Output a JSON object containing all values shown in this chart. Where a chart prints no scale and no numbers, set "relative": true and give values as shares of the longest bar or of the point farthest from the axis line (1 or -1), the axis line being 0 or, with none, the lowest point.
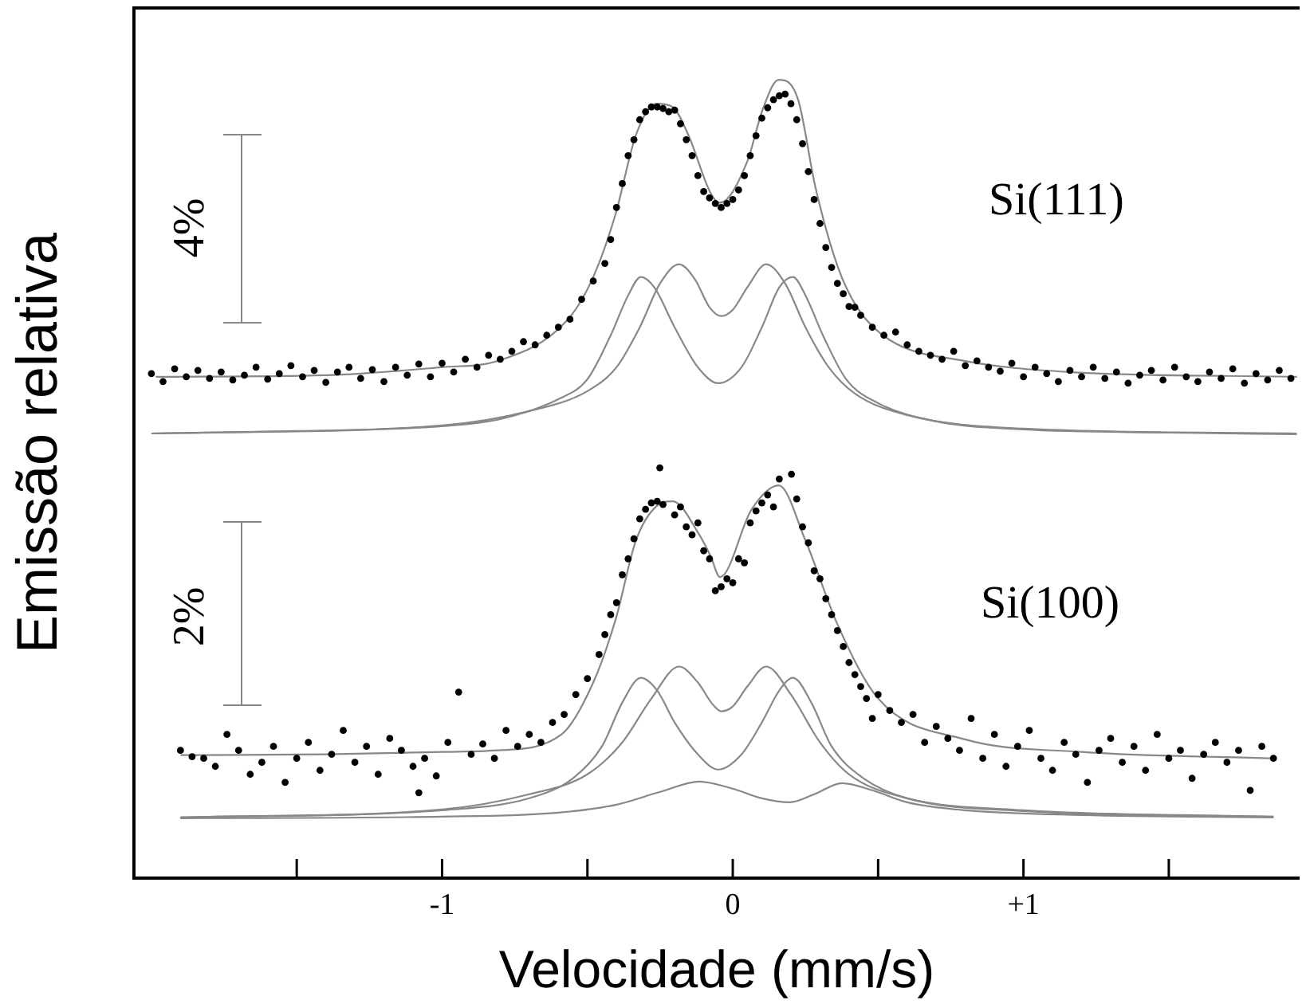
{
  "chart_data": {
    "type": "scatter",
    "xlabel": "Velocidade (mm/s)",
    "ylabel": "Emissão relativa",
    "relative": true,
    "tick_labels": "x",
    "xlim": [
      -2.06,
      1.95
    ],
    "xticks": [
      {
        "value": -1.5,
        "label": null
      },
      -1,
      {
        "value": -0.5,
        "label": null
      },
      0,
      {
        "value": 0.5,
        "label": null
      },
      {
        "value": 1,
        "label": "+1"
      },
      {
        "value": 1.5,
        "label": null
      }
    ],
    "annotations": [
      "4%",
      "2%",
      "Si(111)",
      "Si(100)"
    ],
    "series": [
      {
        "type": "line",
        "color": "#888888",
        "x": [
          -2.0,
          -1.5,
          -1.0,
          -0.8,
          -0.6,
          -0.5,
          -0.42,
          -0.36,
          -0.316,
          -0.27,
          -0.2,
          -0.12,
          -0.05,
          0.03,
          0.1,
          0.16,
          0.207,
          0.25,
          0.31,
          0.39,
          0.5,
          0.7,
          1.0,
          1.5,
          1.94
        ],
        "values": [
          0.557,
          0.56,
          0.566,
          0.575,
          0.6,
          0.625,
          0.68,
          0.73,
          0.753,
          0.74,
          0.69,
          0.64,
          0.62,
          0.64,
          0.69,
          0.74,
          0.753,
          0.73,
          0.68,
          0.625,
          0.595,
          0.572,
          0.562,
          0.558,
          0.556
        ]
      },
      {
        "type": "line",
        "color": "#888888",
        "x": [
          -2.0,
          -1.0,
          -0.7,
          -0.5,
          -0.4,
          -0.32,
          -0.25,
          -0.185,
          -0.13,
          -0.08,
          -0.04,
          0.0,
          0.05,
          0.115,
          0.18,
          0.25,
          0.33,
          0.42,
          0.6,
          1.0,
          1.94
        ],
        "values": [
          0.557,
          0.567,
          0.585,
          0.61,
          0.64,
          0.69,
          0.745,
          0.769,
          0.75,
          0.715,
          0.704,
          0.712,
          0.74,
          0.769,
          0.745,
          0.69,
          0.64,
          0.607,
          0.58,
          0.563,
          0.557
        ]
      },
      {
        "type": "line",
        "color": "#888888",
        "x": [
          -1.985,
          -1.4,
          -1.0,
          -0.807,
          -0.567,
          -0.48,
          -0.403,
          -0.333,
          -0.262,
          -0.207,
          -0.153,
          -0.076,
          -0.044,
          0.049,
          0.104,
          0.158,
          0.224,
          0.284,
          0.36,
          0.431,
          0.54,
          0.796,
          1.156,
          1.941
        ],
        "values": [
          0.628,
          0.63,
          0.64,
          0.648,
          0.7,
          0.753,
          0.832,
          0.931,
          0.97,
          0.966,
          0.931,
          0.858,
          0.846,
          0.897,
          0.964,
          1.0,
          0.976,
          0.866,
          0.767,
          0.713,
          0.674,
          0.648,
          0.634,
          0.628
        ]
      },
      {
        "marker": "circle",
        "color": "#000000",
        "x": [
          -2.0,
          -1.96,
          -1.92,
          -1.88,
          -1.84,
          -1.8,
          -1.76,
          -1.72,
          -1.68,
          -1.64,
          -1.6,
          -1.56,
          -1.52,
          -1.48,
          -1.44,
          -1.4,
          -1.36,
          -1.32,
          -1.28,
          -1.24,
          -1.2,
          -1.16,
          -1.12,
          -1.08,
          -1.04,
          -1.0,
          -0.96,
          -0.92,
          -0.88,
          -0.84,
          -0.8,
          -0.76,
          -0.72,
          -0.68,
          -0.64,
          -0.6,
          -0.56,
          -0.52,
          -0.48,
          -0.44,
          -0.42,
          -0.4,
          -0.38,
          -0.36,
          -0.34,
          -0.32,
          -0.3,
          -0.28,
          -0.26,
          -0.24,
          -0.22,
          -0.2,
          -0.18,
          -0.16,
          -0.14,
          -0.12,
          -0.1,
          -0.08,
          -0.06,
          -0.04,
          -0.02,
          0.0,
          0.02,
          0.04,
          0.06,
          0.08,
          0.1,
          0.12,
          0.14,
          0.16,
          0.18,
          0.2,
          0.22,
          0.24,
          0.26,
          0.28,
          0.3,
          0.32,
          0.34,
          0.36,
          0.38,
          0.4,
          0.42,
          0.44,
          0.48,
          0.52,
          0.56,
          0.6,
          0.64,
          0.68,
          0.72,
          0.76,
          0.8,
          0.84,
          0.88,
          0.92,
          0.96,
          1.0,
          1.04,
          1.08,
          1.12,
          1.16,
          1.2,
          1.24,
          1.28,
          1.32,
          1.36,
          1.4,
          1.44,
          1.48,
          1.52,
          1.56,
          1.6,
          1.64,
          1.68,
          1.72,
          1.76,
          1.8,
          1.84,
          1.88,
          1.92
        ],
        "values": [
          0.632,
          0.622,
          0.638,
          0.628,
          0.636,
          0.626,
          0.634,
          0.624,
          0.63,
          0.64,
          0.625,
          0.632,
          0.642,
          0.628,
          0.636,
          0.621,
          0.634,
          0.64,
          0.626,
          0.637,
          0.622,
          0.64,
          0.63,
          0.644,
          0.628,
          0.645,
          0.634,
          0.65,
          0.64,
          0.655,
          0.65,
          0.66,
          0.672,
          0.668,
          0.68,
          0.69,
          0.7,
          0.725,
          0.748,
          0.77,
          0.8,
          0.84,
          0.87,
          0.905,
          0.925,
          0.95,
          0.96,
          0.966,
          0.966,
          0.964,
          0.96,
          0.962,
          0.945,
          0.925,
          0.905,
          0.88,
          0.86,
          0.852,
          0.845,
          0.84,
          0.845,
          0.85,
          0.862,
          0.88,
          0.905,
          0.93,
          0.952,
          0.965,
          0.975,
          0.98,
          0.982,
          0.97,
          0.95,
          0.92,
          0.885,
          0.85,
          0.82,
          0.79,
          0.765,
          0.745,
          0.732,
          0.716,
          0.715,
          0.705,
          0.69,
          0.68,
          0.684,
          0.668,
          0.66,
          0.655,
          0.65,
          0.66,
          0.642,
          0.648,
          0.64,
          0.635,
          0.645,
          0.628,
          0.64,
          0.632,
          0.622,
          0.636,
          0.628,
          0.64,
          0.626,
          0.634,
          0.62,
          0.63,
          0.636,
          0.624,
          0.64,
          0.628,
          0.622,
          0.634,
          0.626,
          0.638,
          0.62,
          0.632,
          0.624,
          0.636,
          0.626
        ]
      },
      {
        "type": "line",
        "color": "#888888",
        "x": [
          -1.9,
          -1.0,
          -0.7,
          -0.55,
          -0.45,
          -0.38,
          -0.316,
          -0.26,
          -0.2,
          -0.12,
          -0.05,
          0.03,
          0.1,
          0.16,
          0.207,
          0.27,
          0.34,
          0.45,
          0.6,
          1.0,
          1.86
        ],
        "values": [
          0.076,
          0.085,
          0.1,
          0.125,
          0.165,
          0.22,
          0.251,
          0.235,
          0.195,
          0.155,
          0.136,
          0.155,
          0.195,
          0.235,
          0.251,
          0.22,
          0.165,
          0.125,
          0.1,
          0.084,
          0.077
        ]
      },
      {
        "type": "line",
        "color": "#888888",
        "x": [
          -1.9,
          -1.0,
          -0.7,
          -0.5,
          -0.38,
          -0.28,
          -0.185,
          -0.12,
          -0.07,
          -0.04,
          0.0,
          0.05,
          0.115,
          0.2,
          0.3,
          0.4,
          0.6,
          1.0,
          1.86
        ],
        "values": [
          0.076,
          0.086,
          0.105,
          0.13,
          0.17,
          0.225,
          0.265,
          0.245,
          0.218,
          0.209,
          0.215,
          0.24,
          0.265,
          0.23,
          0.17,
          0.13,
          0.1,
          0.085,
          0.077
        ]
      },
      {
        "type": "line",
        "color": "#888888",
        "x": [
          -1.9,
          -1.0,
          -0.6,
          -0.4,
          -0.25,
          -0.115,
          0.0,
          0.1,
          0.196,
          0.28,
          0.376,
          0.48,
          0.6,
          0.8,
          1.2,
          1.86
        ],
        "values": [
          0.075,
          0.077,
          0.082,
          0.092,
          0.108,
          0.121,
          0.112,
          0.1,
          0.095,
          0.105,
          0.119,
          0.11,
          0.095,
          0.085,
          0.079,
          0.076
        ]
      },
      {
        "type": "line",
        "color": "#888888",
        "x": [
          -1.9,
          -1.4,
          -1.0,
          -0.807,
          -0.589,
          -0.48,
          -0.403,
          -0.333,
          -0.262,
          -0.207,
          -0.115,
          -0.076,
          -0.044,
          0.065,
          0.158,
          0.25,
          0.36,
          0.5,
          0.796,
          1.2,
          1.86
        ],
        "values": [
          0.154,
          0.155,
          0.158,
          0.16,
          0.18,
          0.245,
          0.324,
          0.423,
          0.466,
          0.472,
          0.43,
          0.403,
          0.377,
          0.462,
          0.492,
          0.423,
          0.318,
          0.225,
          0.174,
          0.158,
          0.15
        ]
      },
      {
        "marker": "circle",
        "color": "#000000",
        "x": [
          -1.9,
          -1.86,
          -1.82,
          -1.78,
          -1.74,
          -1.7,
          -1.66,
          -1.62,
          -1.58,
          -1.54,
          -1.5,
          -1.46,
          -1.42,
          -1.38,
          -1.34,
          -1.3,
          -1.26,
          -1.22,
          -1.18,
          -1.14,
          -1.1,
          -1.08,
          -1.06,
          -1.02,
          -0.98,
          -0.943,
          -0.9,
          -0.86,
          -0.82,
          -0.78,
          -0.74,
          -0.7,
          -0.66,
          -0.62,
          -0.58,
          -0.54,
          -0.5,
          -0.46,
          -0.44,
          -0.42,
          -0.4,
          -0.38,
          -0.36,
          -0.34,
          -0.32,
          -0.3,
          -0.28,
          -0.26,
          -0.251,
          -0.24,
          -0.2,
          -0.18,
          -0.16,
          -0.14,
          -0.12,
          -0.1,
          -0.08,
          -0.06,
          -0.04,
          -0.02,
          0.0,
          0.02,
          0.04,
          0.06,
          0.08,
          0.1,
          0.12,
          0.14,
          0.16,
          0.202,
          0.22,
          0.24,
          0.26,
          0.28,
          0.3,
          0.32,
          0.34,
          0.36,
          0.38,
          0.4,
          0.42,
          0.44,
          0.46,
          0.48,
          0.5,
          0.54,
          0.58,
          0.62,
          0.66,
          0.7,
          0.74,
          0.78,
          0.82,
          0.86,
          0.9,
          0.94,
          0.98,
          1.02,
          1.06,
          1.1,
          1.14,
          1.18,
          1.22,
          1.26,
          1.3,
          1.34,
          1.38,
          1.42,
          1.46,
          1.5,
          1.54,
          1.58,
          1.62,
          1.66,
          1.7,
          1.74,
          1.78,
          1.82,
          1.86
        ],
        "values": [
          0.16,
          0.152,
          0.15,
          0.14,
          0.18,
          0.16,
          0.13,
          0.145,
          0.165,
          0.12,
          0.15,
          0.17,
          0.135,
          0.155,
          0.185,
          0.145,
          0.165,
          0.13,
          0.175,
          0.16,
          0.14,
          0.107,
          0.15,
          0.128,
          0.17,
          0.233,
          0.155,
          0.168,
          0.15,
          0.185,
          0.165,
          0.18,
          0.17,
          0.195,
          0.205,
          0.23,
          0.25,
          0.28,
          0.305,
          0.33,
          0.345,
          0.38,
          0.4,
          0.425,
          0.45,
          0.462,
          0.47,
          0.472,
          0.514,
          0.468,
          0.455,
          0.465,
          0.44,
          0.43,
          0.445,
          0.41,
          0.4,
          0.36,
          0.365,
          0.375,
          0.37,
          0.4,
          0.395,
          0.445,
          0.46,
          0.47,
          0.48,
          0.465,
          0.5,
          0.506,
          0.475,
          0.44,
          0.42,
          0.385,
          0.375,
          0.35,
          0.33,
          0.31,
          0.29,
          0.27,
          0.255,
          0.24,
          0.225,
          0.2,
          0.23,
          0.21,
          0.195,
          0.205,
          0.17,
          0.19,
          0.175,
          0.16,
          0.2,
          0.15,
          0.18,
          0.14,
          0.165,
          0.185,
          0.15,
          0.135,
          0.17,
          0.155,
          0.12,
          0.16,
          0.175,
          0.145,
          0.165,
          0.135,
          0.18,
          0.15,
          0.16,
          0.125,
          0.155,
          0.17,
          0.145,
          0.16,
          0.11,
          0.165,
          0.15
        ]
      }
    ]
  }
}
